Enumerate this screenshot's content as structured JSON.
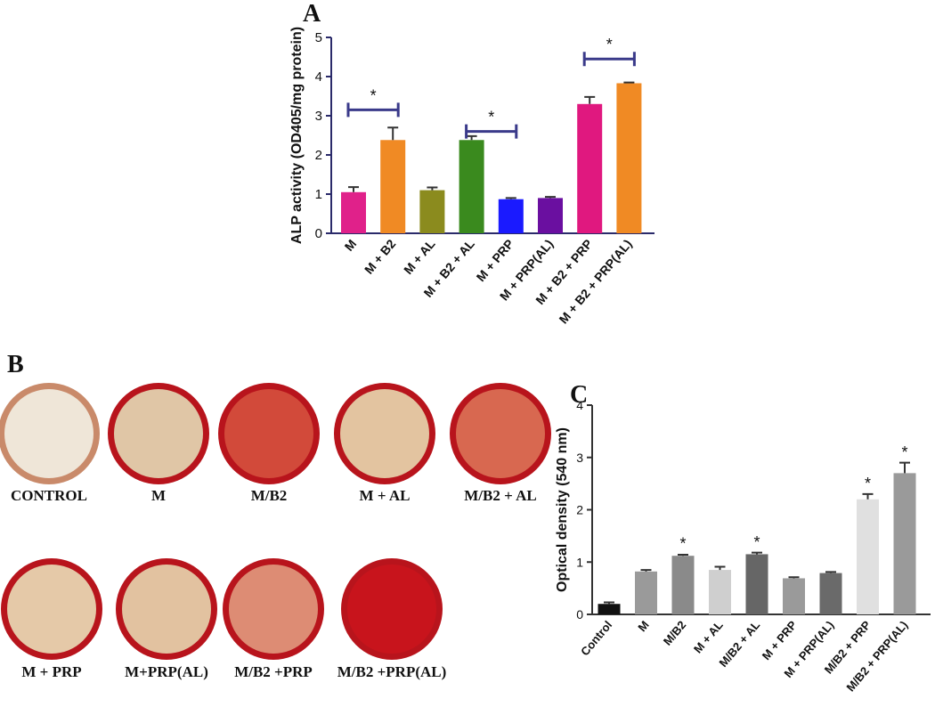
{
  "panel_labels": [
    "A",
    "B",
    "C"
  ],
  "wells": [
    "CONTROL",
    "M",
    "M/B2",
    "M + AL",
    "M/B2 + AL",
    "M + PRP",
    "M+PRP(AL)",
    "M/B2 +PRP",
    "M/B2 +PRP(AL)"
  ],
  "chart_data": [
    {
      "type": "bar",
      "ylabel": "ALP activity (OD405/mg protein)",
      "categories": [
        "M",
        "M + B2",
        "M + AL",
        "M + B2 + AL",
        "M + PRP",
        "M + PRP(AL)",
        "M + B2 + PRP",
        "M + B2 + PRP(AL)"
      ],
      "values": [
        1.05,
        2.38,
        1.1,
        2.38,
        0.87,
        0.9,
        3.3,
        3.83
      ],
      "errors": [
        0.13,
        0.32,
        0.07,
        0.1,
        0.03,
        0.03,
        0.18,
        0.02
      ],
      "colors": [
        "#e0218a",
        "#f08a24",
        "#8b8b1e",
        "#3a8a1e",
        "#1a1aff",
        "#6a0fa0",
        "#e0187f",
        "#f08a24"
      ],
      "ylim": [
        0,
        5
      ],
      "yticks": [
        0,
        1,
        2,
        3,
        4,
        5
      ],
      "annotations": [
        {
          "text": "*",
          "categories": [
            0,
            1
          ],
          "y": 3.15
        },
        {
          "text": "*",
          "categories": [
            3,
            4
          ],
          "y": 2.6
        },
        {
          "text": "*",
          "categories": [
            6,
            7
          ],
          "y": 4.45
        }
      ]
    },
    {
      "type": "bar",
      "ylabel": "Optical density (540 nm)",
      "categories": [
        "Control",
        "M",
        "M/B2",
        "M + AL",
        "M/B2 + AL",
        "M + PRP",
        "M + PRP(AL)",
        "M/B2 + PRP",
        "M/B2 + PRP(AL)"
      ],
      "values": [
        0.2,
        0.82,
        1.12,
        0.85,
        1.15,
        0.69,
        0.79,
        2.2,
        2.7
      ],
      "errors": [
        0.03,
        0.03,
        0.02,
        0.06,
        0.03,
        0.02,
        0.02,
        0.1,
        0.2
      ],
      "colors": [
        "#111111",
        "#9a9a9a",
        "#8a8a8a",
        "#cfcfcf",
        "#666666",
        "#9a9a9a",
        "#6a6a6a",
        "#e0e0e0",
        "#9a9a9a"
      ],
      "ylim": [
        0,
        4
      ],
      "yticks": [
        0,
        1,
        2,
        3,
        4
      ],
      "annotations": [
        {
          "text": "*",
          "categories": [
            2
          ],
          "y": 1.35
        },
        {
          "text": "*",
          "categories": [
            4
          ],
          "y": 1.38
        },
        {
          "text": "*",
          "categories": [
            7
          ],
          "y": 2.5
        },
        {
          "text": "*",
          "categories": [
            8
          ],
          "y": 3.1
        }
      ]
    }
  ]
}
